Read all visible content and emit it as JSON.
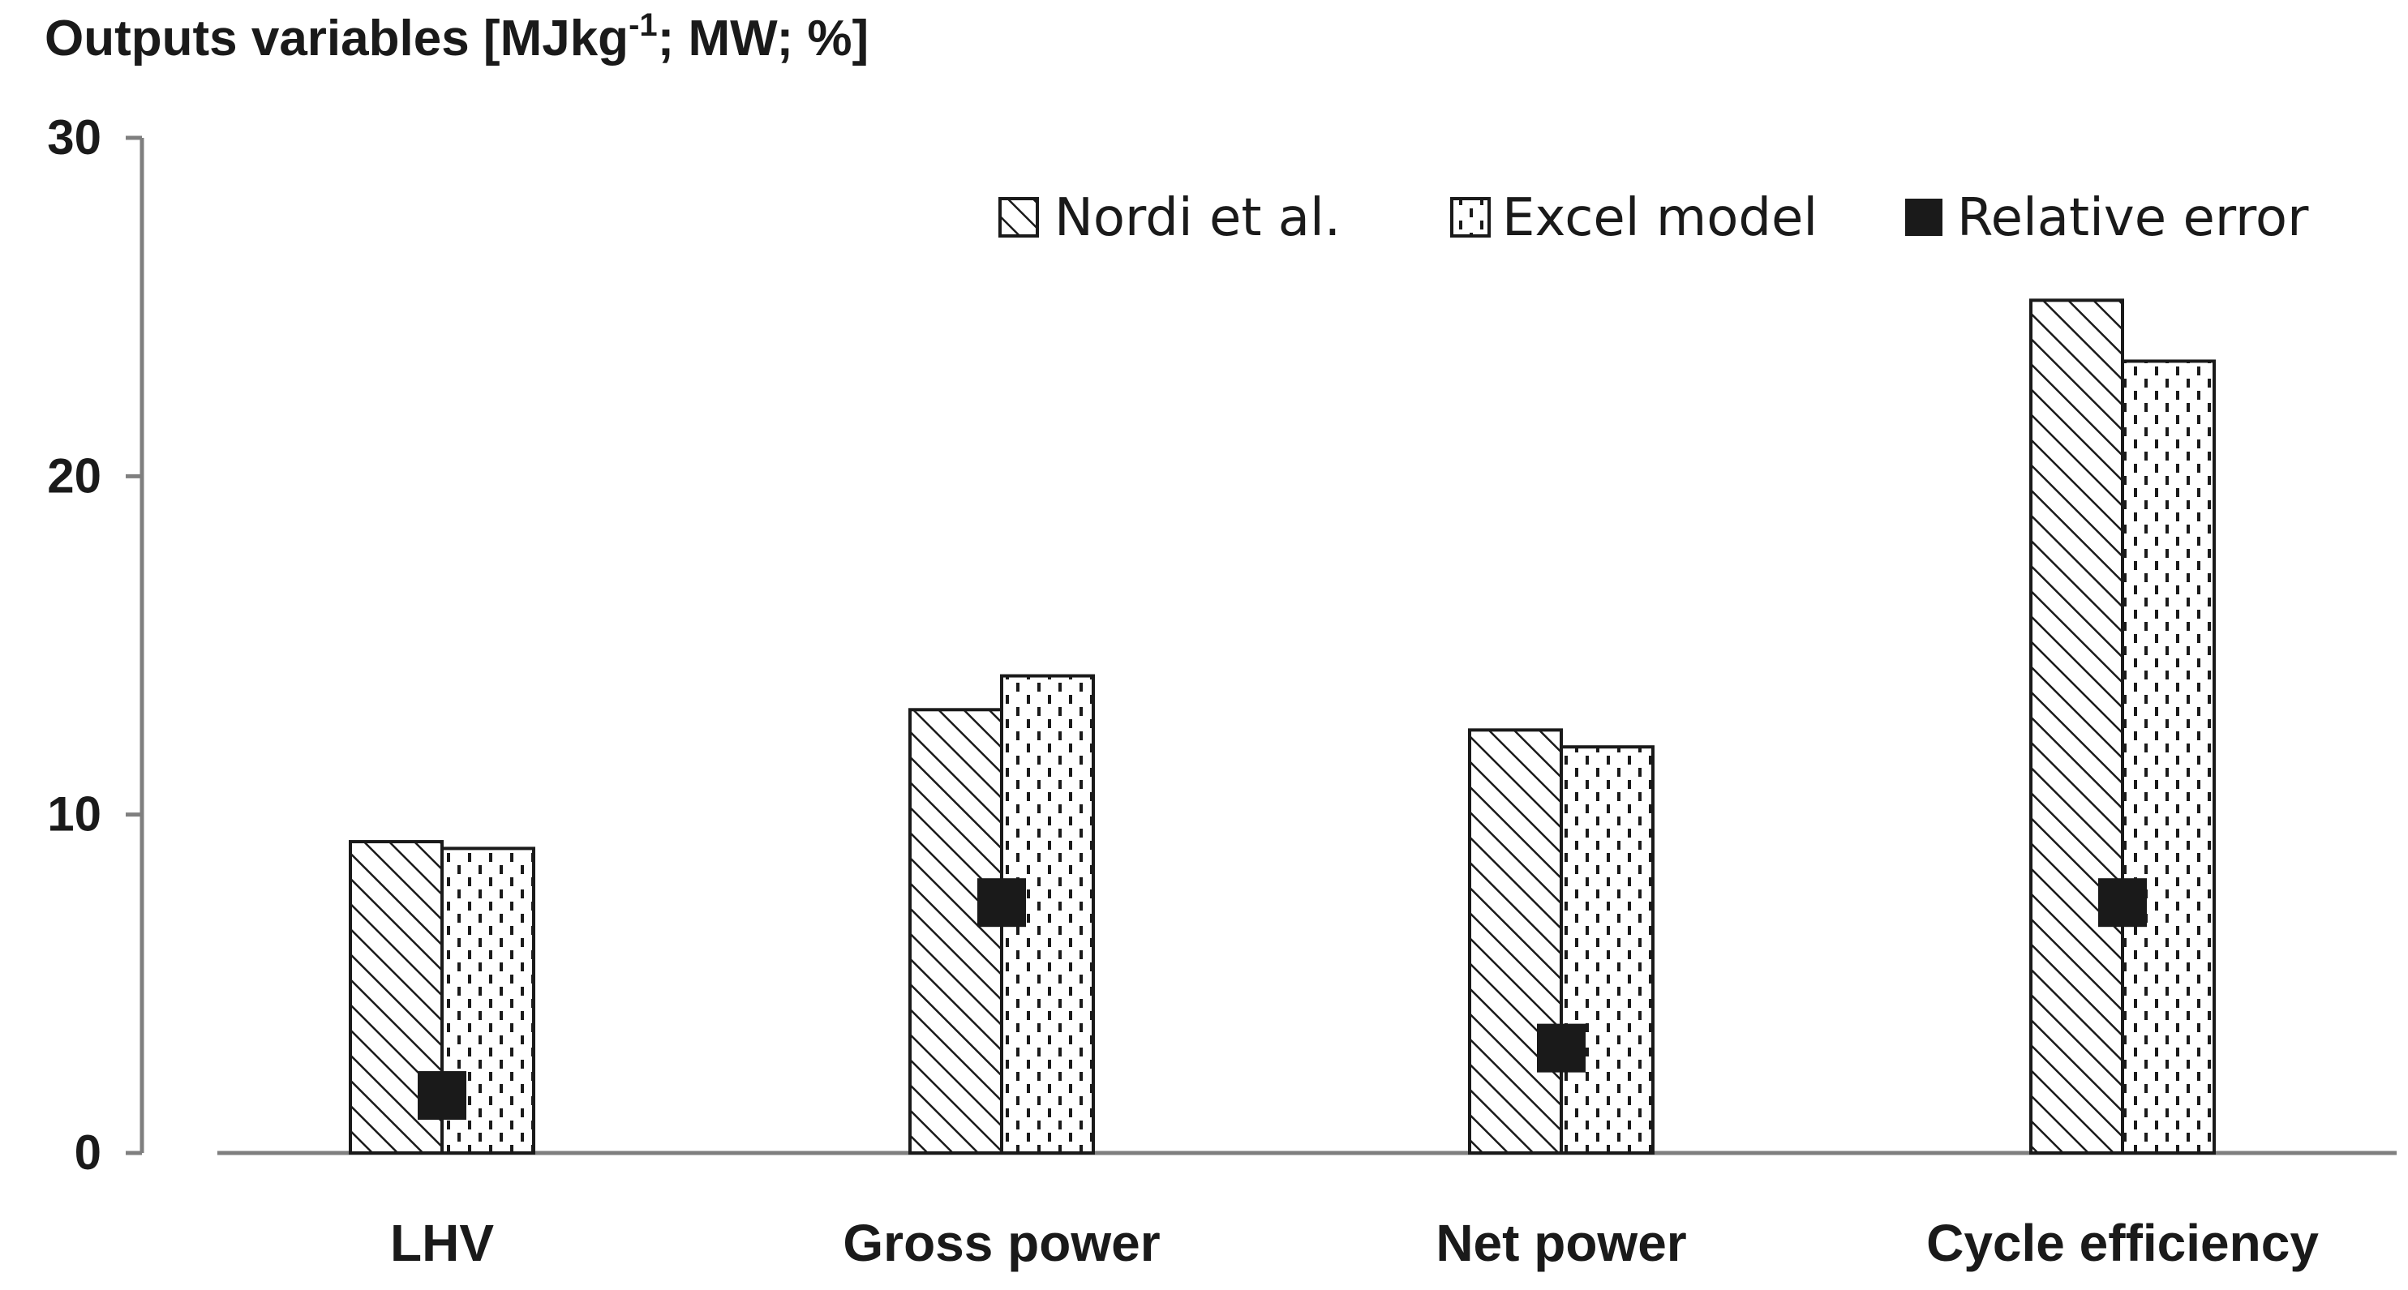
{
  "chart_data": {
    "type": "bar",
    "ylabel_prefix": "Outputs variables  [MJkg",
    "ylabel_superscript": "-1",
    "ylabel_suffix": "; MW; %]",
    "categories": [
      "LHV",
      "Gross power",
      "Net power",
      "Cycle efficiency"
    ],
    "yticks": [
      "0",
      "10",
      "20",
      "30"
    ],
    "ylim": [
      0,
      30
    ],
    "series": [
      {
        "name": "Nordi et al.",
        "kind": "bar",
        "pattern": "diagonal-hatch",
        "values": [
          9.2,
          13.1,
          12.5,
          25.2
        ]
      },
      {
        "name": "Excel model",
        "kind": "bar",
        "pattern": "dashed-dots",
        "values": [
          9.0,
          14.1,
          12.0,
          23.4
        ]
      },
      {
        "name": "Relative error",
        "kind": "marker",
        "marker": "square",
        "values": [
          1.7,
          7.4,
          3.1,
          7.4
        ]
      }
    ],
    "legend_position": "top-right",
    "grid": false,
    "colors": {
      "ink": "#1a1a1a",
      "bar_fill": "#ffffff",
      "axis": "#7f7f7f"
    }
  }
}
